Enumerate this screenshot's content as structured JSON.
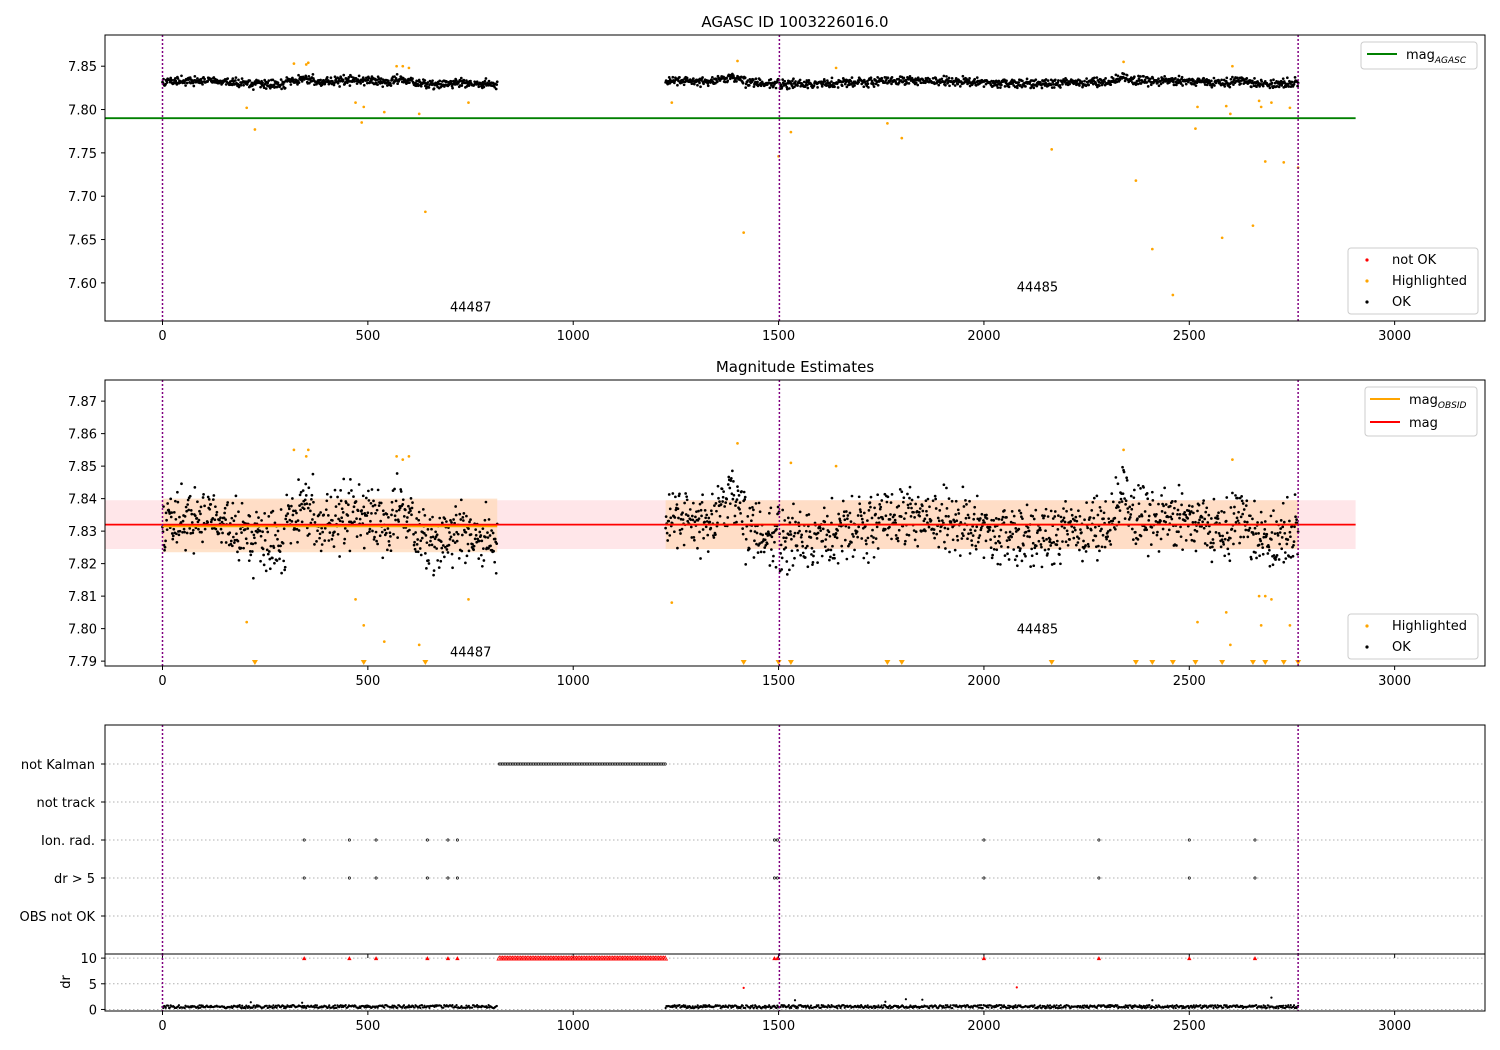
{
  "colors": {
    "ok": "#000000",
    "highlighted": "#ffa500",
    "not_ok": "#ff0000",
    "mag_agasc": "#008000",
    "mag_obsid": "#ffa500",
    "mag": "#ff0000",
    "obs_band": "#ffdab9",
    "mag_band": "#ffb6c1",
    "obs_boundary": "#800080"
  },
  "chart_data": [
    {
      "type": "scatter",
      "title": "AGASC ID 1003226016.0",
      "xlabel": "",
      "ylabel": "",
      "xlim": [
        -140,
        3220
      ],
      "ylim": [
        7.556,
        7.886
      ],
      "xticks": [
        0,
        500,
        1000,
        1500,
        2000,
        2500,
        3000
      ],
      "yticks": [
        7.6,
        7.65,
        7.7,
        7.75,
        7.8,
        7.85
      ],
      "lines": [
        {
          "name": "mag",
          "name_sub": "AGASC",
          "y": 7.79,
          "x": [
            -140,
            2905
          ]
        }
      ],
      "obs_boundaries": [
        0,
        1502,
        2765
      ],
      "obs_labels": [
        {
          "text": "44487",
          "x": 700,
          "y": 7.567
        },
        {
          "text": "44485",
          "x": 2080,
          "y": 7.59
        }
      ],
      "segments": [
        {
          "x": [
            0,
            815
          ],
          "y_center": 7.832
        },
        {
          "x": [
            1225,
            2765
          ],
          "y_center": 7.832
        }
      ],
      "highlighted_points": [
        [
          205,
          7.802
        ],
        [
          225,
          7.777
        ],
        [
          320,
          7.853
        ],
        [
          350,
          7.852
        ],
        [
          355,
          7.854
        ],
        [
          470,
          7.808
        ],
        [
          485,
          7.785
        ],
        [
          490,
          7.803
        ],
        [
          540,
          7.797
        ],
        [
          570,
          7.85
        ],
        [
          585,
          7.85
        ],
        [
          600,
          7.848
        ],
        [
          625,
          7.795
        ],
        [
          640,
          7.682
        ],
        [
          745,
          7.808
        ],
        [
          1240,
          7.808
        ],
        [
          1400,
          7.856
        ],
        [
          1415,
          7.658
        ],
        [
          1500,
          7.746
        ],
        [
          1530,
          7.774
        ],
        [
          1640,
          7.848
        ],
        [
          1765,
          7.784
        ],
        [
          1800,
          7.767
        ],
        [
          2165,
          7.754
        ],
        [
          2340,
          7.855
        ],
        [
          2370,
          7.718
        ],
        [
          2410,
          7.639
        ],
        [
          2460,
          7.586
        ],
        [
          2515,
          7.778
        ],
        [
          2520,
          7.803
        ],
        [
          2580,
          7.652
        ],
        [
          2590,
          7.804
        ],
        [
          2600,
          7.795
        ],
        [
          2605,
          7.85
        ],
        [
          2655,
          7.666
        ],
        [
          2670,
          7.81
        ],
        [
          2675,
          7.803
        ],
        [
          2685,
          7.74
        ],
        [
          2700,
          7.808
        ],
        [
          2730,
          7.739
        ],
        [
          2745,
          7.802
        ],
        [
          2765,
          7.733
        ]
      ],
      "legend": {
        "location": "lower right",
        "entries": [
          "not OK",
          "Highlighted",
          "OK"
        ]
      },
      "legend_top": {
        "location": "upper right",
        "entries": [
          "mag"
        ],
        "entry_sub": "AGASC"
      }
    },
    {
      "type": "scatter",
      "title": "Magnitude Estimates",
      "xlabel": "",
      "ylabel": "",
      "xlim": [
        -140,
        3220
      ],
      "ylim": [
        7.7885,
        7.8765
      ],
      "xticks": [
        0,
        500,
        1000,
        1500,
        2000,
        2500,
        3000
      ],
      "yticks": [
        7.79,
        7.8,
        7.81,
        7.82,
        7.83,
        7.84,
        7.85,
        7.86,
        7.87
      ],
      "mag": {
        "name": "mag",
        "y": 7.832,
        "band": [
          7.8245,
          7.8395
        ],
        "x": [
          -140,
          2905
        ]
      },
      "mag_obsid": {
        "name": "mag",
        "name_sub": "OBSID",
        "segments": [
          {
            "x": [
              0,
              815
            ],
            "y": 7.8315,
            "band": [
              7.8235,
              7.84
            ]
          },
          {
            "x": [
              1225,
              2765
            ],
            "y": 7.832,
            "band": [
              7.8245,
              7.8395
            ]
          }
        ]
      },
      "obs_boundaries": [
        0,
        1502,
        2765
      ],
      "obs_labels": [
        {
          "text": "44487",
          "x": 700,
          "y": 7.7915
        },
        {
          "text": "44485",
          "x": 2080,
          "y": 7.7985
        }
      ],
      "highlighted_points": [
        [
          205,
          7.802
        ],
        [
          320,
          7.855
        ],
        [
          350,
          7.853
        ],
        [
          355,
          7.855
        ],
        [
          470,
          7.809
        ],
        [
          490,
          7.801
        ],
        [
          540,
          7.796
        ],
        [
          570,
          7.853
        ],
        [
          585,
          7.852
        ],
        [
          600,
          7.853
        ],
        [
          625,
          7.795
        ],
        [
          745,
          7.809
        ],
        [
          1240,
          7.808
        ],
        [
          1400,
          7.857
        ],
        [
          1530,
          7.851
        ],
        [
          1640,
          7.85
        ],
        [
          2340,
          7.855
        ],
        [
          2520,
          7.802
        ],
        [
          2590,
          7.805
        ],
        [
          2600,
          7.795
        ],
        [
          2605,
          7.852
        ],
        [
          2670,
          7.81
        ],
        [
          2675,
          7.801
        ],
        [
          2685,
          7.81
        ],
        [
          2700,
          7.809
        ],
        [
          2745,
          7.801
        ]
      ],
      "offscale_markers": [
        225,
        490,
        640,
        1415,
        1500,
        1530,
        1765,
        1800,
        2165,
        2370,
        2410,
        2460,
        2515,
        2580,
        2655,
        2685,
        2730,
        2765
      ],
      "legend": {
        "location": "lower right",
        "entries": [
          "Highlighted",
          "OK"
        ]
      },
      "legend_top": {
        "location": "upper right",
        "entries": [
          "mag",
          "mag"
        ],
        "entry_sub": "OBSID"
      }
    },
    {
      "type": "scatter",
      "title": "",
      "xlabel": "",
      "ylabel": "",
      "xlim": [
        -140,
        3220
      ],
      "categories": [
        "not Kalman",
        "not track",
        "Ion. rad.",
        "dr > 5",
        "OBS not OK"
      ],
      "obs_boundaries": [
        0,
        1502,
        2765
      ],
      "not_kalman_range": [
        820,
        1225
      ],
      "flag_times": [
        345,
        455,
        520,
        645,
        695,
        718,
        1490,
        1497,
        2000,
        2280,
        2500,
        2660
      ]
    },
    {
      "type": "scatter",
      "title": "",
      "xlabel": "",
      "ylabel": "dr",
      "xlim": [
        -140,
        3220
      ],
      "ylim": [
        -0.3,
        10.8
      ],
      "xticks": [
        0,
        500,
        1000,
        1500,
        2000,
        2500,
        3000
      ],
      "yticks": [
        0,
        5,
        10
      ],
      "obs_boundaries": [
        0,
        1502,
        2765
      ],
      "clipped_range": [
        820,
        1225
      ],
      "clipped_times": [
        345,
        455,
        520,
        645,
        695,
        718,
        1490,
        1497,
        2000,
        2280,
        2500,
        2660
      ],
      "not_ok_points": [
        [
          1415,
          4.2
        ],
        [
          2080,
          4.3
        ]
      ],
      "outliers": [
        [
          215,
          1.4
        ],
        [
          340,
          1.3
        ],
        [
          1540,
          1.8
        ],
        [
          1760,
          1.5
        ],
        [
          1810,
          2.0
        ],
        [
          1850,
          1.9
        ],
        [
          2410,
          1.8
        ],
        [
          2700,
          2.3
        ]
      ]
    }
  ]
}
